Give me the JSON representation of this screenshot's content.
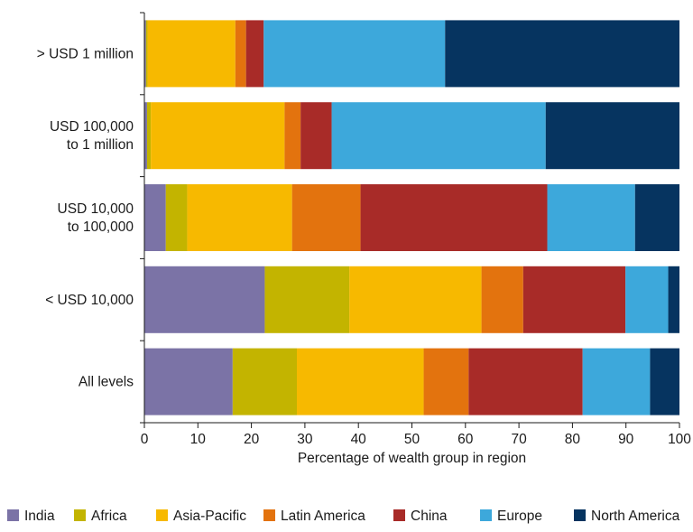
{
  "chart_data": {
    "type": "bar",
    "orientation": "horizontal",
    "stacked": true,
    "categories": [
      [
        "> USD 1 million"
      ],
      [
        "USD 100,000",
        "to 1 million"
      ],
      [
        "USD 10,000",
        "to 100,000"
      ],
      [
        "< USD 10,000"
      ],
      [
        "All levels"
      ]
    ],
    "series": [
      {
        "name": "India",
        "color": "#7b73a6",
        "values": [
          0.3,
          0.5,
          4.0,
          22.5,
          16.5
        ]
      },
      {
        "name": "Africa",
        "color": "#c3b400",
        "values": [
          0.3,
          0.7,
          4.0,
          15.8,
          12.0
        ]
      },
      {
        "name": "Asia-Pacific",
        "color": "#f7b900",
        "values": [
          16.4,
          25.0,
          19.6,
          24.7,
          23.7
        ]
      },
      {
        "name": "Latin America",
        "color": "#e3730e",
        "values": [
          2.0,
          3.0,
          12.8,
          7.8,
          8.4
        ]
      },
      {
        "name": "China",
        "color": "#a82b28",
        "values": [
          3.3,
          5.8,
          34.9,
          19.1,
          21.3
        ]
      },
      {
        "name": "Europe",
        "color": "#3da8db",
        "values": [
          33.9,
          40.0,
          16.4,
          8.0,
          12.6
        ]
      },
      {
        "name": "North America",
        "color": "#063460",
        "values": [
          43.8,
          25.0,
          8.3,
          2.1,
          5.5
        ]
      }
    ],
    "xlabel": "Percentage of wealth group in region",
    "ylabel": "",
    "xlim": [
      0,
      100
    ],
    "xticks": [
      "0",
      "10",
      "20",
      "30",
      "40",
      "50",
      "60",
      "70",
      "80",
      "90",
      "100"
    ],
    "grid": false,
    "legend_position": "bottom"
  }
}
